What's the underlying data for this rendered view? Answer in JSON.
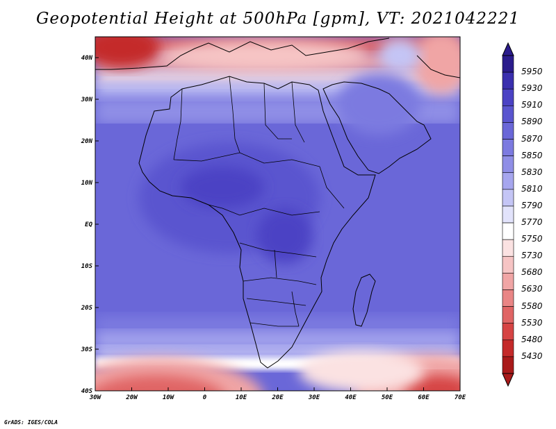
{
  "title": "Geopotential Height at 500hPa [gpm], VT: 2021042221",
  "credit": "GrADS: IGES/COLA",
  "map": {
    "lon_ticks": [
      "30W",
      "20W",
      "10W",
      "0",
      "10E",
      "20E",
      "30E",
      "40E",
      "50E",
      "60E",
      "70E"
    ],
    "lat_ticks": [
      "40N",
      "30N",
      "20N",
      "10N",
      "EQ",
      "10S",
      "20S",
      "30S",
      "40S"
    ]
  },
  "colorbar": {
    "levels": [
      "5950",
      "5930",
      "5910",
      "5890",
      "5870",
      "5850",
      "5830",
      "5810",
      "5790",
      "5770",
      "5750",
      "5730",
      "5680",
      "5630",
      "5580",
      "5530",
      "5480",
      "5430"
    ],
    "colors": [
      "#2b1c8c",
      "#3a2fae",
      "#4b42c4",
      "#5a55cf",
      "#6a67d8",
      "#7c7ae0",
      "#8f8ee6",
      "#a6a6ee",
      "#c4c5f5",
      "#e2e3fb",
      "#ffffff",
      "#fbe2e2",
      "#f6c4c4",
      "#f0a5a5",
      "#e98585",
      "#e06565",
      "#d64444",
      "#c42a2a",
      "#a91a1a"
    ]
  }
}
